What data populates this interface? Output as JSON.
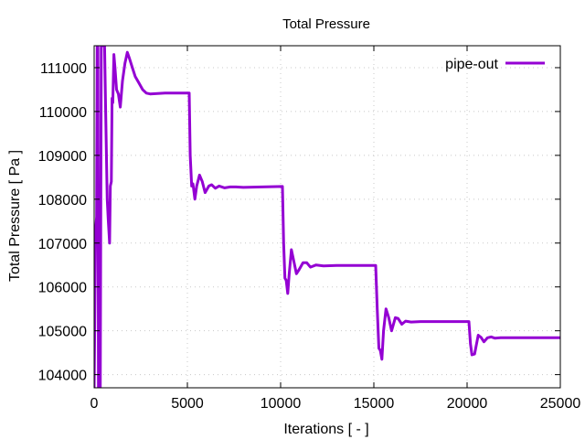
{
  "chart_data": {
    "type": "line",
    "title": "Total Pressure",
    "xlabel": "Iterations [ - ]",
    "ylabel": "Total Pressure [ Pa ]",
    "xlim": [
      0,
      25000
    ],
    "ylim": [
      103700,
      111500
    ],
    "xticks": [
      0,
      5000,
      10000,
      15000,
      20000,
      25000
    ],
    "yticks": [
      104000,
      105000,
      106000,
      107000,
      108000,
      109000,
      110000,
      111000
    ],
    "grid": true,
    "legend_position": "top-right",
    "series": [
      {
        "name": "pipe-out",
        "color": "#9400d3",
        "points": [
          [
            0,
            103700
          ],
          [
            80,
            107300
          ],
          [
            130,
            107600
          ],
          [
            160,
            111500
          ],
          [
            200,
            111500
          ],
          [
            230,
            103700
          ],
          [
            330,
            103700
          ],
          [
            380,
            111500
          ],
          [
            560,
            111500
          ],
          [
            620,
            110000
          ],
          [
            700,
            108000
          ],
          [
            760,
            107500
          ],
          [
            830,
            107000
          ],
          [
            870,
            108300
          ],
          [
            920,
            108400
          ],
          [
            960,
            110300
          ],
          [
            1000,
            110200
          ],
          [
            1060,
            111300
          ],
          [
            1120,
            111000
          ],
          [
            1200,
            110500
          ],
          [
            1300,
            110400
          ],
          [
            1400,
            110100
          ],
          [
            1520,
            110700
          ],
          [
            1650,
            111100
          ],
          [
            1780,
            111350
          ],
          [
            1900,
            111200
          ],
          [
            2050,
            111000
          ],
          [
            2200,
            110800
          ],
          [
            2400,
            110650
          ],
          [
            2600,
            110500
          ],
          [
            2800,
            110420
          ],
          [
            3000,
            110400
          ],
          [
            3400,
            110410
          ],
          [
            3800,
            110420
          ],
          [
            4200,
            110420
          ],
          [
            4600,
            110420
          ],
          [
            5100,
            110420
          ],
          [
            5150,
            109000
          ],
          [
            5230,
            108300
          ],
          [
            5300,
            108350
          ],
          [
            5400,
            108000
          ],
          [
            5500,
            108300
          ],
          [
            5650,
            108550
          ],
          [
            5800,
            108400
          ],
          [
            5950,
            108150
          ],
          [
            6150,
            108300
          ],
          [
            6300,
            108330
          ],
          [
            6500,
            108250
          ],
          [
            6700,
            108300
          ],
          [
            7000,
            108260
          ],
          [
            7300,
            108280
          ],
          [
            7600,
            108280
          ],
          [
            8000,
            108270
          ],
          [
            9000,
            108280
          ],
          [
            10100,
            108290
          ],
          [
            10160,
            107000
          ],
          [
            10230,
            106200
          ],
          [
            10300,
            106150
          ],
          [
            10380,
            105850
          ],
          [
            10460,
            106300
          ],
          [
            10580,
            106850
          ],
          [
            10700,
            106600
          ],
          [
            10850,
            106300
          ],
          [
            11000,
            106400
          ],
          [
            11200,
            106550
          ],
          [
            11400,
            106550
          ],
          [
            11600,
            106450
          ],
          [
            11900,
            106500
          ],
          [
            12300,
            106480
          ],
          [
            13000,
            106490
          ],
          [
            14000,
            106490
          ],
          [
            15100,
            106490
          ],
          [
            15180,
            105500
          ],
          [
            15270,
            104600
          ],
          [
            15350,
            104550
          ],
          [
            15430,
            104350
          ],
          [
            15520,
            105000
          ],
          [
            15650,
            105500
          ],
          [
            15800,
            105300
          ],
          [
            15950,
            105000
          ],
          [
            16150,
            105300
          ],
          [
            16300,
            105280
          ],
          [
            16500,
            105150
          ],
          [
            16700,
            105220
          ],
          [
            17000,
            105200
          ],
          [
            17500,
            105210
          ],
          [
            18500,
            105210
          ],
          [
            20100,
            105210
          ],
          [
            20180,
            104700
          ],
          [
            20260,
            104450
          ],
          [
            20400,
            104470
          ],
          [
            20600,
            104900
          ],
          [
            20750,
            104850
          ],
          [
            20900,
            104750
          ],
          [
            21100,
            104840
          ],
          [
            21300,
            104860
          ],
          [
            21500,
            104830
          ],
          [
            21800,
            104840
          ],
          [
            22500,
            104840
          ],
          [
            25000,
            104840
          ]
        ]
      }
    ]
  }
}
